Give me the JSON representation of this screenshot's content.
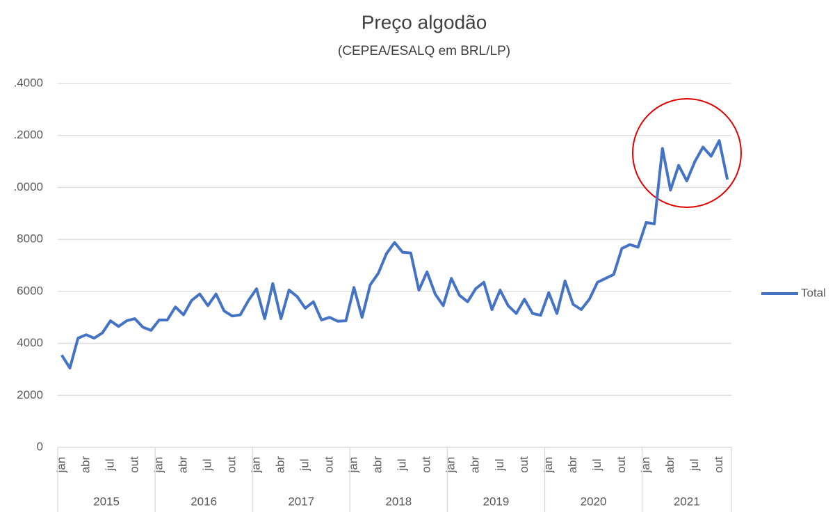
{
  "chart_data": {
    "type": "line",
    "title": "Preço algodão",
    "subtitle": "(CEPEA/ESALQ em BRL/LP)",
    "categories": [
      "jan",
      null,
      null,
      "abr",
      null,
      null,
      "jul",
      null,
      null,
      "out",
      null,
      null,
      "jan",
      null,
      null,
      "abr",
      null,
      null,
      "jul",
      null,
      null,
      "out",
      null,
      null,
      "jan",
      null,
      null,
      "abr",
      null,
      null,
      "jul",
      null,
      null,
      "out",
      null,
      null,
      "jan",
      null,
      null,
      "abr",
      null,
      null,
      "jul",
      null,
      null,
      "out",
      null,
      null,
      "jan",
      null,
      null,
      "abr",
      null,
      null,
      "jul",
      null,
      null,
      "out",
      null,
      null,
      "jan",
      null,
      null,
      "abr",
      null,
      null,
      "jul",
      null,
      null,
      "out",
      null,
      null,
      "jan",
      null,
      null,
      "abr",
      null,
      null,
      "jul",
      null,
      null,
      "out",
      null
    ],
    "years": [
      "2015",
      "2016",
      "2017",
      "2018",
      "2019",
      "2020",
      "2021"
    ],
    "series": [
      {
        "name": "Total",
        "color": "#4472c4",
        "values": [
          3550,
          3050,
          4200,
          4330,
          4200,
          4400,
          4870,
          4650,
          4870,
          4950,
          4620,
          4500,
          4900,
          4900,
          5400,
          5100,
          5650,
          5900,
          5450,
          5900,
          5250,
          5050,
          5100,
          5650,
          6100,
          4950,
          6300,
          4950,
          6050,
          5800,
          5350,
          5600,
          4900,
          5000,
          4850,
          4870,
          6150,
          5000,
          6250,
          6700,
          7450,
          7880,
          7500,
          7480,
          6050,
          6750,
          5900,
          5450,
          6500,
          5850,
          5600,
          6100,
          6350,
          5300,
          6050,
          5450,
          5150,
          5700,
          5150,
          5080,
          5950,
          5150,
          6400,
          5500,
          5300,
          5700,
          6350,
          6500,
          6650,
          7650,
          7800,
          7700,
          8650,
          8600,
          11500,
          9900,
          10850,
          10250,
          11000,
          11550,
          11200,
          11800,
          10300
        ]
      }
    ],
    "ylim": [
      0,
      14000
    ],
    "yticks": [
      0,
      2000,
      4000,
      6000,
      8000,
      {
        "value": 10000,
        "label": ".0000"
      },
      {
        "value": 12000,
        "label": ".2000"
      },
      {
        "value": 14000,
        "label": ".4000"
      }
    ],
    "grid": true,
    "legend": "right"
  }
}
